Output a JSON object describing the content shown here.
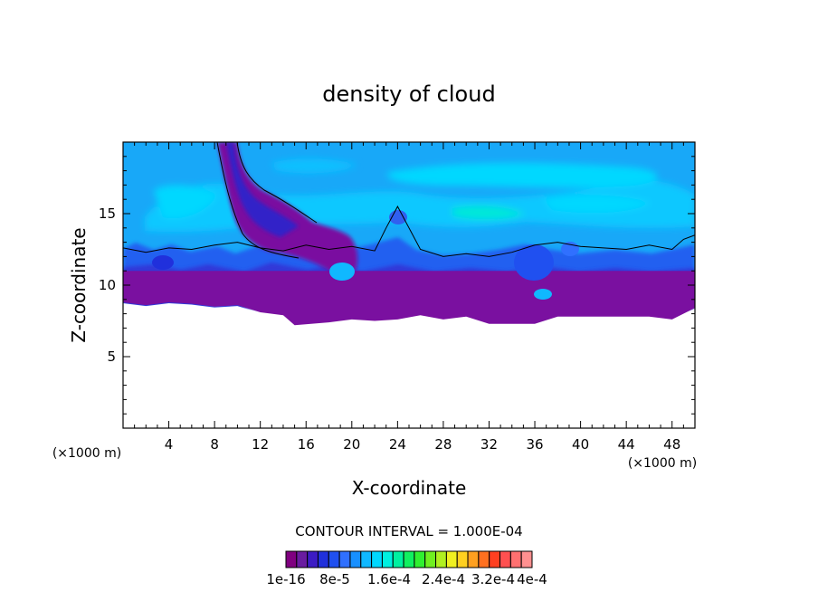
{
  "chart_data": {
    "type": "heatmap",
    "title": "density of cloud",
    "xlabel": "X-coordinate",
    "ylabel": "Z-coordinate",
    "x_unit_left": "(×1000 m)",
    "x_unit_right": "(×1000 m)",
    "xlim": [
      0,
      50
    ],
    "ylim": [
      0,
      20
    ],
    "x_ticks": [
      "4",
      "8",
      "12",
      "16",
      "20",
      "24",
      "28",
      "32",
      "36",
      "40",
      "44",
      "48"
    ],
    "x_tick_values": [
      4,
      8,
      12,
      16,
      20,
      24,
      28,
      32,
      36,
      40,
      44,
      48
    ],
    "y_ticks": [
      "5",
      "10",
      "15"
    ],
    "y_tick_values": [
      5,
      10,
      15
    ],
    "contour_interval": "CONTOUR INTERVAL = 1.000E-04",
    "colorbar_labels": [
      "1e-16",
      "8e-5",
      "1.6e-4",
      "2.4e-4",
      "3.2e-4",
      "4e-4"
    ],
    "colorbar_colors": [
      "#800080",
      "#6a1ca0",
      "#3c1cc4",
      "#2030dc",
      "#2050f0",
      "#3070ff",
      "#1890ff",
      "#10b8ff",
      "#00d8ff",
      "#00f0e0",
      "#00f0a0",
      "#10f060",
      "#30f030",
      "#70f020",
      "#b0f020",
      "#f0f020",
      "#ffd020",
      "#ffa020",
      "#ff7020",
      "#ff4020",
      "#ff5050",
      "#ff7070",
      "#ff9090"
    ],
    "cloud_base_km": [
      [
        0,
        8.8
      ],
      [
        2,
        8.6
      ],
      [
        4,
        8.8
      ],
      [
        6,
        8.7
      ],
      [
        8,
        8.5
      ],
      [
        10,
        8.6
      ],
      [
        12,
        8.1
      ],
      [
        14,
        7.9
      ],
      [
        15,
        7.2
      ],
      [
        18,
        7.4
      ],
      [
        20,
        7.6
      ],
      [
        22,
        7.5
      ],
      [
        24,
        7.6
      ],
      [
        26,
        7.9
      ],
      [
        28,
        7.6
      ],
      [
        30,
        7.8
      ],
      [
        32,
        7.3
      ],
      [
        34,
        7.3
      ],
      [
        36,
        7.3
      ],
      [
        38,
        7.8
      ],
      [
        40,
        7.8
      ],
      [
        42,
        7.8
      ],
      [
        44,
        7.8
      ],
      [
        46,
        7.8
      ],
      [
        48,
        7.6
      ],
      [
        50,
        8.4
      ]
    ],
    "cloud_top_contour_km": [
      [
        0,
        12.6
      ],
      [
        2,
        12.3
      ],
      [
        4,
        12.6
      ],
      [
        6,
        12.5
      ],
      [
        8,
        12.8
      ],
      [
        10,
        13.0
      ],
      [
        12,
        12.6
      ],
      [
        14,
        12.4
      ],
      [
        16,
        12.8
      ],
      [
        18,
        12.5
      ],
      [
        20,
        12.7
      ],
      [
        22,
        12.4
      ],
      [
        23,
        14.0
      ],
      [
        24,
        15.5
      ],
      [
        25,
        14.0
      ],
      [
        26,
        12.5
      ],
      [
        28,
        12.0
      ],
      [
        30,
        12.2
      ],
      [
        32,
        12.0
      ],
      [
        34,
        12.3
      ],
      [
        36,
        12.8
      ],
      [
        38,
        13.0
      ],
      [
        40,
        12.7
      ],
      [
        42,
        12.6
      ],
      [
        44,
        12.5
      ],
      [
        46,
        12.8
      ],
      [
        48,
        12.5
      ],
      [
        49,
        13.2
      ],
      [
        50,
        13.5
      ]
    ],
    "grid": false,
    "legend": "colorbar-bottom"
  }
}
